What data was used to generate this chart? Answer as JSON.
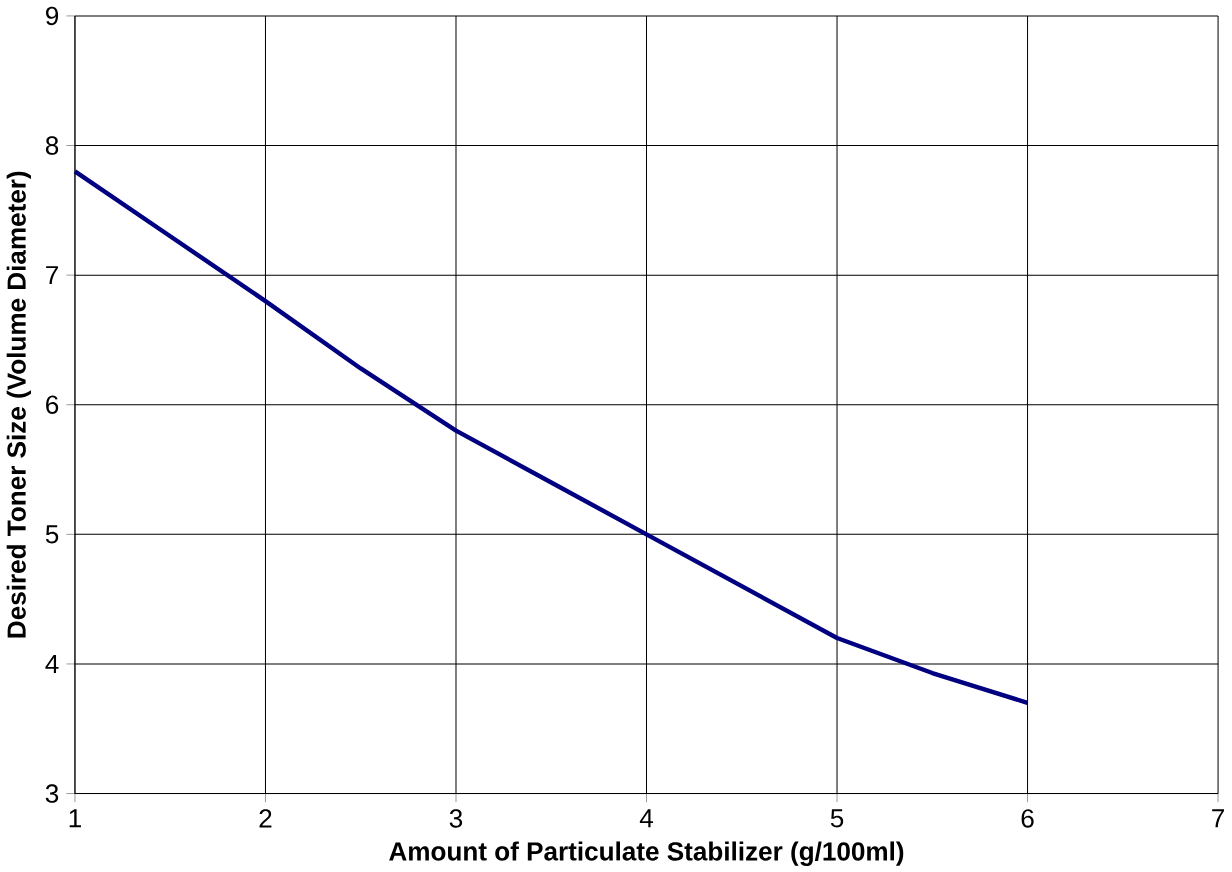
{
  "chart_data": {
    "type": "line",
    "xlabel": "Amount of Particulate Stabilizer (g/100ml)",
    "ylabel": "Desired Toner Size (Volume Diameter)",
    "x": [
      1,
      1.5,
      2,
      2.5,
      3,
      3.5,
      4,
      4.5,
      5,
      5.5,
      6
    ],
    "series": [
      {
        "color": "#000080",
        "values": [
          7.8,
          7.3,
          6.8,
          6.28,
          5.8,
          5.4,
          5.0,
          4.6,
          4.2,
          3.93,
          3.7
        ]
      }
    ],
    "xlim": [
      1,
      7
    ],
    "xticks": [
      1,
      2,
      3,
      4,
      5,
      6,
      7
    ],
    "ylim": [
      3,
      9
    ],
    "yticks": [
      3,
      4,
      5,
      6,
      7,
      8,
      9
    ],
    "grid": true,
    "marker": "none",
    "line_style": "solid"
  }
}
